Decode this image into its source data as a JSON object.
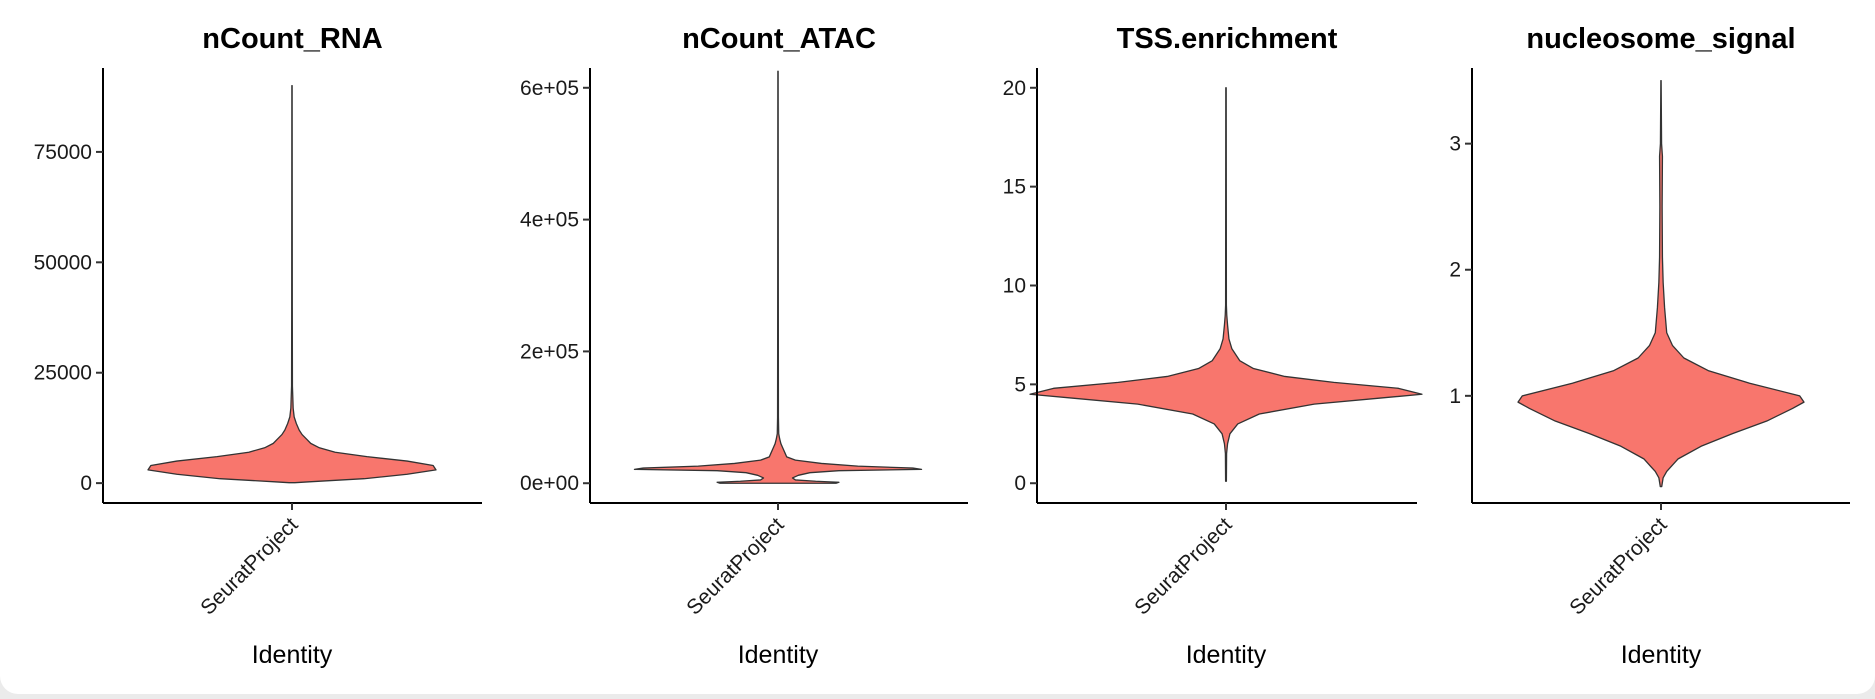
{
  "chart_data": [
    {
      "type": "violin",
      "title": "nCount_RNA",
      "categories": [
        "SeuratProject"
      ],
      "xlabel": "Identity",
      "ylabel": "",
      "ylim": [
        -4500,
        94000
      ],
      "yticks": [
        0,
        25000,
        50000,
        75000
      ],
      "ytick_labels": [
        "0",
        "25000",
        "50000",
        "75000"
      ],
      "fill_color": "#f8766d",
      "range": [
        100,
        90000
      ],
      "profile": [
        [
          100,
          0.02
        ],
        [
          300,
          0.12
        ],
        [
          1000,
          0.5
        ],
        [
          2000,
          0.8
        ],
        [
          3000,
          1.0
        ],
        [
          4000,
          0.98
        ],
        [
          5000,
          0.8
        ],
        [
          6000,
          0.52
        ],
        [
          7000,
          0.3
        ],
        [
          8000,
          0.19
        ],
        [
          9000,
          0.13
        ],
        [
          10000,
          0.1
        ],
        [
          11000,
          0.07
        ],
        [
          12000,
          0.05
        ],
        [
          13500,
          0.03
        ],
        [
          15000,
          0.015
        ],
        [
          17000,
          0.008
        ],
        [
          20000,
          0.005
        ],
        [
          22000,
          0.003
        ],
        [
          40000,
          0.002
        ],
        [
          90000,
          0.001
        ]
      ]
    },
    {
      "type": "violin",
      "title": "nCount_ATAC",
      "categories": [
        "SeuratProject"
      ],
      "xlabel": "Identity",
      "ylabel": "",
      "ylim": [
        -30000,
        630000
      ],
      "yticks": [
        0,
        200000,
        400000,
        600000
      ],
      "ytick_labels": [
        "0e+00",
        "2e+05",
        "4e+05",
        "6e+05"
      ],
      "fill_color": "#f8766d",
      "range": [
        0,
        625000
      ],
      "profile": [
        [
          0,
          0.4
        ],
        [
          1500,
          0.42
        ],
        [
          3000,
          0.26
        ],
        [
          5000,
          0.12
        ],
        [
          8000,
          0.1
        ],
        [
          12000,
          0.14
        ],
        [
          16000,
          0.22
        ],
        [
          19000,
          0.42
        ],
        [
          21000,
          0.99
        ],
        [
          23000,
          0.93
        ],
        [
          26000,
          0.55
        ],
        [
          30000,
          0.3
        ],
        [
          35000,
          0.12
        ],
        [
          40000,
          0.06
        ],
        [
          45000,
          0.05
        ],
        [
          50000,
          0.04
        ],
        [
          55000,
          0.03
        ],
        [
          60000,
          0.02
        ],
        [
          67000,
          0.012
        ],
        [
          75000,
          0.005
        ],
        [
          100000,
          0.003
        ],
        [
          300000,
          0.002
        ],
        [
          625000,
          0.001
        ]
      ]
    },
    {
      "type": "violin",
      "title": "TSS.enrichment",
      "categories": [
        "SeuratProject"
      ],
      "xlabel": "Identity",
      "ylabel": "",
      "ylim": [
        -1,
        21
      ],
      "yticks": [
        0,
        5,
        10,
        15,
        20
      ],
      "ytick_labels": [
        "0",
        "5",
        "10",
        "15",
        "20"
      ],
      "fill_color": "#f8766d",
      "range": [
        0.1,
        20
      ],
      "profile": [
        [
          0.1,
          0.002
        ],
        [
          1.5,
          0.003
        ],
        [
          2,
          0.008
        ],
        [
          2.5,
          0.02
        ],
        [
          3,
          0.06
        ],
        [
          3.5,
          0.17
        ],
        [
          4,
          0.45
        ],
        [
          4.3,
          0.78
        ],
        [
          4.5,
          1.0
        ],
        [
          4.8,
          0.88
        ],
        [
          5.1,
          0.55
        ],
        [
          5.4,
          0.3
        ],
        [
          5.8,
          0.14
        ],
        [
          6.2,
          0.07
        ],
        [
          6.8,
          0.03
        ],
        [
          7.3,
          0.015
        ],
        [
          8,
          0.008
        ],
        [
          8.5,
          0.004
        ],
        [
          9,
          0.002
        ],
        [
          20,
          0.001
        ]
      ]
    },
    {
      "type": "violin",
      "title": "nucleosome_signal",
      "categories": [
        "SeuratProject"
      ],
      "xlabel": "Identity",
      "ylabel": "",
      "ylim": [
        0.15,
        3.6
      ],
      "yticks": [
        1,
        2,
        3
      ],
      "ytick_labels": [
        "1",
        "2",
        "3"
      ],
      "fill_color": "#f8766d",
      "range": [
        0.28,
        3.5
      ],
      "profile": [
        [
          0.28,
          0.005
        ],
        [
          0.35,
          0.015
        ],
        [
          0.4,
          0.04
        ],
        [
          0.5,
          0.12
        ],
        [
          0.6,
          0.28
        ],
        [
          0.7,
          0.5
        ],
        [
          0.8,
          0.74
        ],
        [
          0.9,
          0.92
        ],
        [
          0.95,
          1.0
        ],
        [
          1.0,
          0.97
        ],
        [
          1.1,
          0.62
        ],
        [
          1.2,
          0.33
        ],
        [
          1.3,
          0.16
        ],
        [
          1.4,
          0.08
        ],
        [
          1.5,
          0.04
        ],
        [
          1.7,
          0.025
        ],
        [
          1.9,
          0.015
        ],
        [
          2.1,
          0.01
        ],
        [
          2.5,
          0.008
        ],
        [
          2.9,
          0.01
        ],
        [
          3.0,
          0.004
        ],
        [
          3.5,
          0.001
        ]
      ]
    }
  ]
}
